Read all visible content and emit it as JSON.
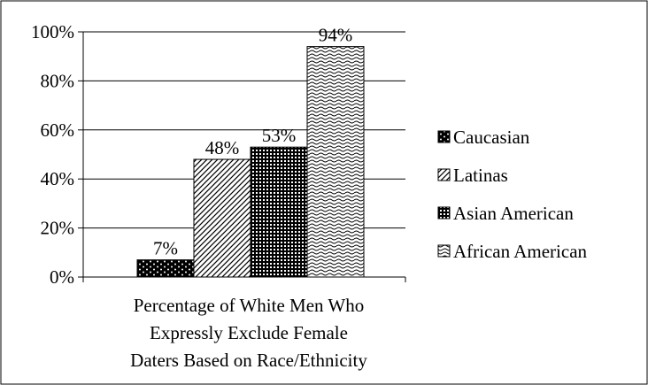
{
  "chart_data": {
    "type": "bar",
    "title": "",
    "xlabel": "",
    "ylabel": "",
    "ylim": [
      0,
      100
    ],
    "y_ticks": [
      "0%",
      "20%",
      "40%",
      "60%",
      "80%",
      "100%"
    ],
    "y_tick_values": [
      0,
      20,
      40,
      60,
      80,
      100
    ],
    "grid": true,
    "legend_position": "right",
    "category_label_lines": [
      "Percentage of White Men Who",
      "Expressly Exclude Female",
      "Daters Based on Race/Ethnicity"
    ],
    "categories": [
      "Percentage of White Men Who Expressly Exclude Female Daters Based on Race/Ethnicity"
    ],
    "series": [
      {
        "name": "Caucasian",
        "values": [
          7
        ],
        "label": "7%",
        "pattern": "dots"
      },
      {
        "name": "Latinas",
        "values": [
          48
        ],
        "label": "48%",
        "pattern": "diagonal"
      },
      {
        "name": "Asian American",
        "values": [
          53
        ],
        "label": "53%",
        "pattern": "grid"
      },
      {
        "name": "African American",
        "values": [
          94
        ],
        "label": "94%",
        "pattern": "wave"
      }
    ]
  }
}
